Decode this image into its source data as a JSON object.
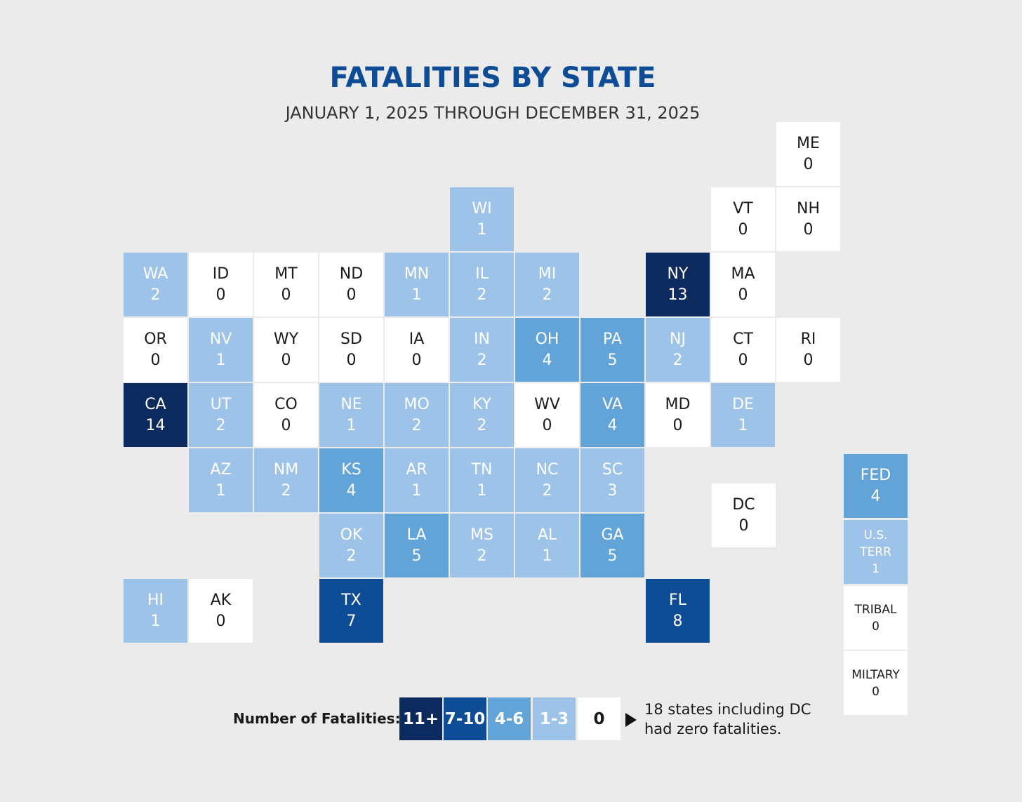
{
  "title": "FATALITIES BY STATE",
  "subtitle": "JANUARY 1, 2025 THROUGH DECEMBER 31, 2025",
  "colors": {
    "zero": "#ffffff",
    "range_1_3": "#9dc3e8",
    "range_4_6": "#62a3d8",
    "range_7_10": "#0f4c96",
    "range_11_plus": "#0d2a5e",
    "title": "#0f4c96",
    "background": "#ebebeb"
  },
  "states": [
    {
      "abbr": "ME",
      "value": "0"
    },
    {
      "abbr": "WI",
      "value": "1"
    },
    {
      "abbr": "VT",
      "value": "0"
    },
    {
      "abbr": "NH",
      "value": "0"
    },
    {
      "abbr": "WA",
      "value": "2"
    },
    {
      "abbr": "ID",
      "value": "0"
    },
    {
      "abbr": "MT",
      "value": "0"
    },
    {
      "abbr": "ND",
      "value": "0"
    },
    {
      "abbr": "MN",
      "value": "1"
    },
    {
      "abbr": "IL",
      "value": "2"
    },
    {
      "abbr": "MI",
      "value": "2"
    },
    {
      "abbr": "NY",
      "value": "13"
    },
    {
      "abbr": "MA",
      "value": "0"
    },
    {
      "abbr": "OR",
      "value": "0"
    },
    {
      "abbr": "NV",
      "value": "1"
    },
    {
      "abbr": "WY",
      "value": "0"
    },
    {
      "abbr": "SD",
      "value": "0"
    },
    {
      "abbr": "IA",
      "value": "0"
    },
    {
      "abbr": "IN",
      "value": "2"
    },
    {
      "abbr": "OH",
      "value": "4"
    },
    {
      "abbr": "PA",
      "value": "5"
    },
    {
      "abbr": "NJ",
      "value": "2"
    },
    {
      "abbr": "CT",
      "value": "0"
    },
    {
      "abbr": "RI",
      "value": "0"
    },
    {
      "abbr": "CA",
      "value": "14"
    },
    {
      "abbr": "UT",
      "value": "2"
    },
    {
      "abbr": "CO",
      "value": "0"
    },
    {
      "abbr": "NE",
      "value": "1"
    },
    {
      "abbr": "MO",
      "value": "2"
    },
    {
      "abbr": "KY",
      "value": "2"
    },
    {
      "abbr": "WV",
      "value": "0"
    },
    {
      "abbr": "VA",
      "value": "4"
    },
    {
      "abbr": "MD",
      "value": "0"
    },
    {
      "abbr": "DE",
      "value": "1"
    },
    {
      "abbr": "AZ",
      "value": "1"
    },
    {
      "abbr": "NM",
      "value": "2"
    },
    {
      "abbr": "KS",
      "value": "4"
    },
    {
      "abbr": "AR",
      "value": "1"
    },
    {
      "abbr": "TN",
      "value": "1"
    },
    {
      "abbr": "NC",
      "value": "2"
    },
    {
      "abbr": "SC",
      "value": "3"
    },
    {
      "abbr": "DC",
      "value": "0"
    },
    {
      "abbr": "OK",
      "value": "2"
    },
    {
      "abbr": "LA",
      "value": "5"
    },
    {
      "abbr": "MS",
      "value": "2"
    },
    {
      "abbr": "AL",
      "value": "1"
    },
    {
      "abbr": "GA",
      "value": "5"
    },
    {
      "abbr": "HI",
      "value": "1"
    },
    {
      "abbr": "AK",
      "value": "0"
    },
    {
      "abbr": "TX",
      "value": "7"
    },
    {
      "abbr": "FL",
      "value": "8"
    }
  ],
  "other": [
    {
      "abbr": "FED",
      "value": "4"
    },
    {
      "abbr": "U.S.\nTERR",
      "value": "1"
    },
    {
      "abbr": "TRIBAL",
      "value": "0"
    },
    {
      "abbr": "MILTARY",
      "value": "0"
    }
  ],
  "legend": {
    "label": "Number of Fatalities:",
    "keys": [
      "11+",
      "7-10",
      "4-6",
      "1-3",
      "0"
    ],
    "note": "18 states including DC had zero fatalities."
  }
}
